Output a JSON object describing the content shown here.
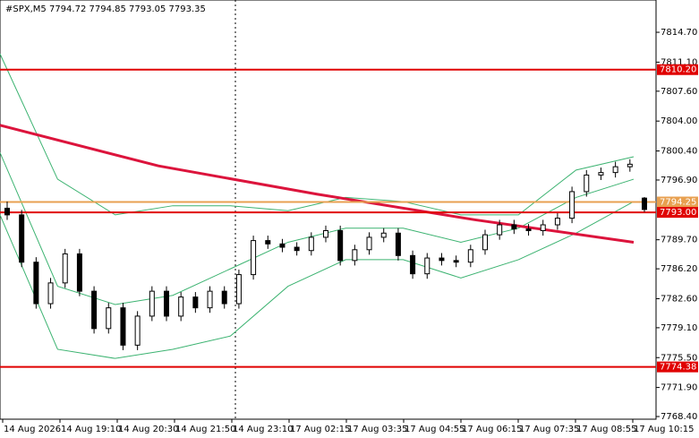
{
  "chart_data": {
    "type": "candlestick",
    "title": "#SPX,M5  7794.72 7794.85 7793.05 7793.35",
    "ylim": [
      7768.08,
      7818.59
    ],
    "yticks": [
      {
        "value": 7814.7,
        "label": "7814.70"
      },
      {
        "value": 7811.1,
        "label": "7811.10"
      },
      {
        "value": 7807.6,
        "label": "7807.60"
      },
      {
        "value": 7804.0,
        "label": "7804.00"
      },
      {
        "value": 7800.4,
        "label": "7800.40"
      },
      {
        "value": 7796.9,
        "label": "7796.90"
      },
      {
        "value": 7789.7,
        "label": "7789.70"
      },
      {
        "value": 7786.2,
        "label": "7786.20"
      },
      {
        "value": 7782.6,
        "label": "7782.60"
      },
      {
        "value": 7779.1,
        "label": "7779.10"
      },
      {
        "value": 7775.5,
        "label": "7775.50"
      },
      {
        "value": 7771.9,
        "label": "7771.90"
      },
      {
        "value": 7768.4,
        "label": "7768.40"
      }
    ],
    "time_labels": [
      "14 Aug 2026",
      "14 Aug 19:10",
      "14 Aug 20:30",
      "14 Aug 21:50",
      "14 Aug 23:10",
      "17 Aug 02:15",
      "17 Aug 03:35",
      "17 Aug 04:55",
      "17 Aug 06:15",
      "17 Aug 07:35",
      "17 Aug 08:55",
      "17 Aug 10:15"
    ],
    "levels": [
      {
        "value": 7810.2,
        "label": "7810.20",
        "color": "#e00000"
      },
      {
        "value": 7794.25,
        "label": "7794.25",
        "color": "#e8a050"
      },
      {
        "value": 7793.0,
        "label": "7793.00",
        "color": "#e00000"
      },
      {
        "value": 7774.38,
        "label": "7774.38",
        "color": "#e00000"
      }
    ],
    "candles": [
      [
        7793.5,
        7794.3,
        7792.1,
        7792.7
      ],
      [
        7792.7,
        7793.3,
        7786.4,
        7787.0
      ],
      [
        7787.0,
        7787.6,
        7781.4,
        7782.0
      ],
      [
        7782.0,
        7785.1,
        7781.4,
        7784.5
      ],
      [
        7784.5,
        7788.6,
        7783.9,
        7788.0
      ],
      [
        7788.0,
        7788.6,
        7782.9,
        7783.5
      ],
      [
        7783.5,
        7784.1,
        7778.4,
        7779.0
      ],
      [
        7779.0,
        7782.1,
        7778.4,
        7781.5
      ],
      [
        7781.5,
        7782.1,
        7776.4,
        7777.0
      ],
      [
        7777.0,
        7781.1,
        7776.4,
        7780.5
      ],
      [
        7780.5,
        7784.1,
        7779.9,
        7783.5
      ],
      [
        7783.5,
        7784.1,
        7779.9,
        7780.5
      ],
      [
        7780.5,
        7783.4,
        7779.9,
        7782.8
      ],
      [
        7782.8,
        7783.4,
        7780.9,
        7781.5
      ],
      [
        7781.5,
        7784.1,
        7780.9,
        7783.5
      ],
      [
        7783.5,
        7784.1,
        7781.4,
        7782.0
      ],
      [
        7782.0,
        7786.1,
        7781.4,
        7785.5
      ],
      [
        7785.5,
        7790.2,
        7784.9,
        7789.6
      ],
      [
        7789.6,
        7790.2,
        7788.6,
        7789.2
      ],
      [
        7789.2,
        7789.8,
        7788.2,
        7788.8
      ],
      [
        7788.8,
        7789.4,
        7787.8,
        7788.4
      ],
      [
        7788.4,
        7790.6,
        7787.8,
        7790.0
      ],
      [
        7790.0,
        7791.4,
        7789.4,
        7790.8
      ],
      [
        7790.8,
        7791.4,
        7786.6,
        7787.2
      ],
      [
        7787.2,
        7789.1,
        7786.6,
        7788.5
      ],
      [
        7788.5,
        7790.6,
        7787.9,
        7790.0
      ],
      [
        7790.0,
        7791.1,
        7789.4,
        7790.5
      ],
      [
        7790.5,
        7791.1,
        7787.2,
        7787.8
      ],
      [
        7787.8,
        7788.4,
        7785.0,
        7785.6
      ],
      [
        7785.6,
        7788.1,
        7785.0,
        7787.5
      ],
      [
        7787.5,
        7788.1,
        7786.6,
        7787.2
      ],
      [
        7787.2,
        7787.8,
        7786.4,
        7787.0
      ],
      [
        7787.0,
        7789.1,
        7786.4,
        7788.5
      ],
      [
        7788.5,
        7790.9,
        7787.9,
        7790.3
      ],
      [
        7790.3,
        7792.1,
        7789.7,
        7791.5
      ],
      [
        7791.5,
        7792.1,
        7790.4,
        7791.0
      ],
      [
        7791.0,
        7791.6,
        7790.2,
        7790.8
      ],
      [
        7790.8,
        7792.1,
        7790.2,
        7791.5
      ],
      [
        7791.5,
        7792.9,
        7790.9,
        7792.3
      ],
      [
        7792.3,
        7796.1,
        7791.7,
        7795.5
      ],
      [
        7795.5,
        7798.1,
        7794.9,
        7797.5
      ],
      [
        7797.5,
        7798.4,
        7796.9,
        7797.8
      ],
      [
        7797.8,
        7799.1,
        7797.2,
        7798.5
      ],
      [
        7798.5,
        7799.4,
        7797.9,
        7798.8
      ],
      [
        7794.72,
        7794.85,
        7793.05,
        7793.35
      ]
    ],
    "candle_colors": {
      "up": "#ffffff",
      "down": "#000000",
      "outline": "#000000"
    },
    "lines": [
      {
        "name": "upper",
        "color": "#3cb371",
        "width": 1,
        "values": [
          7812.1,
          7797.0,
          7792.7,
          7793.8,
          7793.8,
          7793.2,
          7794.8,
          7794.3,
          7792.7,
          7792.7,
          7798.1,
          7799.7
        ]
      },
      {
        "name": "middle",
        "color": "#3cb371",
        "width": 1,
        "values": [
          7800.2,
          7784.1,
          7781.9,
          7783.0,
          7786.2,
          7789.4,
          7791.1,
          7791.1,
          7789.4,
          7791.1,
          7794.8,
          7797.0
        ]
      },
      {
        "name": "lower",
        "color": "#3cb371",
        "width": 1,
        "values": [
          7792.7,
          7776.5,
          7775.4,
          7776.5,
          7778.1,
          7784.1,
          7787.3,
          7787.3,
          7785.1,
          7787.3,
          7790.5,
          7794.3
        ]
      },
      {
        "name": "ma",
        "color": "#dc143c",
        "width": 3,
        "values": [
          7803.5,
          7798.6,
          7795.2,
          7792.1,
          7789.4
        ]
      }
    ]
  }
}
